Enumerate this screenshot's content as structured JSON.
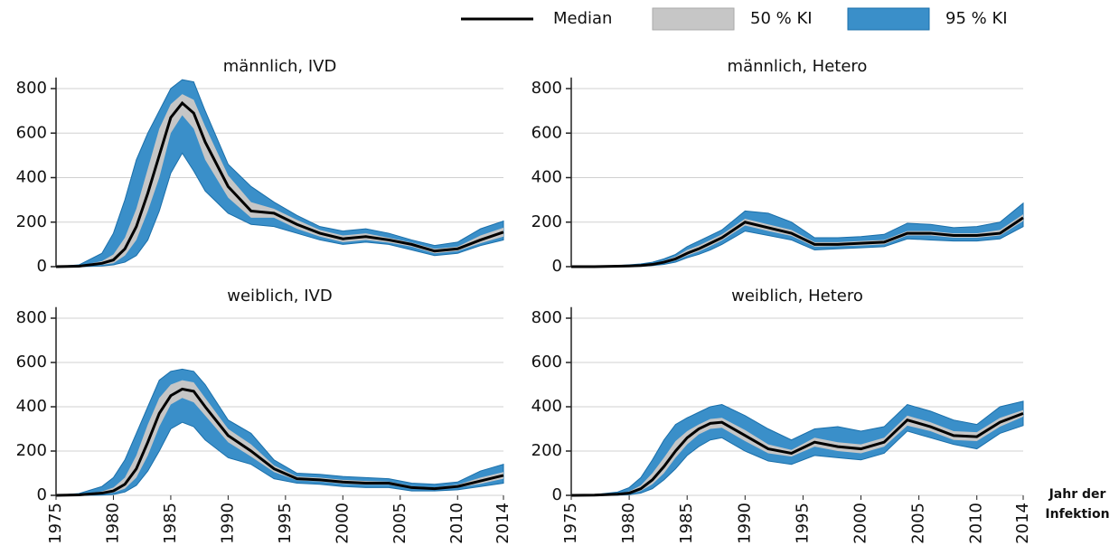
{
  "legend": [
    {
      "name": "Median",
      "color": "#000000"
    },
    {
      "name": "50 % KI",
      "color": "#c6c6c6"
    },
    {
      "name": "95 % KI",
      "color": "#3a8fc9"
    }
  ],
  "x_label": "Jahr der Infektion",
  "chart_data": [
    {
      "type": "band-line",
      "title": "männlich, IVD",
      "x": [
        1975,
        1977,
        1979,
        1980,
        1981,
        1982,
        1983,
        1984,
        1985,
        1986,
        1987,
        1988,
        1990,
        1992,
        1994,
        1996,
        1998,
        2000,
        2002,
        2004,
        2006,
        2008,
        2010,
        2012,
        2014
      ],
      "xlim": [
        1975,
        2014
      ],
      "ylim": [
        0,
        850
      ],
      "yticks": [
        0,
        200,
        400,
        600,
        800
      ],
      "series": [
        {
          "color": "#3a8fc9",
          "low": [
            0,
            0,
            3,
            8,
            20,
            50,
            120,
            250,
            420,
            510,
            430,
            340,
            240,
            190,
            180,
            150,
            120,
            100,
            110,
            100,
            75,
            50,
            60,
            95,
            120
          ],
          "high": [
            0,
            8,
            60,
            150,
            300,
            480,
            600,
            700,
            800,
            840,
            830,
            700,
            460,
            360,
            290,
            230,
            180,
            160,
            170,
            150,
            120,
            95,
            110,
            170,
            205
          ]
        },
        {
          "color": "#c6c6c6",
          "low": [
            0,
            1,
            8,
            15,
            50,
            120,
            250,
            400,
            600,
            680,
            620,
            480,
            310,
            220,
            220,
            170,
            135,
            110,
            120,
            108,
            90,
            60,
            70,
            105,
            135
          ],
          "high": [
            0,
            4,
            25,
            55,
            130,
            260,
            440,
            620,
            730,
            775,
            750,
            630,
            410,
            290,
            260,
            210,
            165,
            140,
            150,
            130,
            108,
            80,
            90,
            140,
            175
          ]
        },
        {
          "color": "#000000",
          "values": [
            0,
            2,
            15,
            30,
            80,
            180,
            330,
            500,
            670,
            735,
            690,
            560,
            360,
            250,
            240,
            190,
            150,
            125,
            135,
            120,
            100,
            70,
            80,
            120,
            155
          ]
        }
      ]
    },
    {
      "type": "band-line",
      "title": "männlich, Hetero",
      "x": [
        1975,
        1977,
        1979,
        1980,
        1981,
        1982,
        1983,
        1984,
        1985,
        1986,
        1987,
        1988,
        1990,
        1992,
        1994,
        1996,
        1998,
        2000,
        2002,
        2004,
        2006,
        2008,
        2010,
        2012,
        2014
      ],
      "xlim": [
        1975,
        2014
      ],
      "ylim": [
        0,
        850
      ],
      "yticks": [
        0,
        200,
        400,
        600,
        800
      ],
      "series": [
        {
          "color": "#3a8fc9",
          "low": [
            0,
            0,
            0,
            1,
            2,
            5,
            10,
            20,
            40,
            55,
            75,
            100,
            160,
            140,
            120,
            75,
            80,
            85,
            90,
            125,
            120,
            115,
            115,
            125,
            180
          ],
          "high": [
            0,
            1,
            5,
            8,
            12,
            20,
            35,
            55,
            90,
            115,
            140,
            165,
            250,
            240,
            200,
            130,
            130,
            135,
            145,
            195,
            190,
            175,
            180,
            200,
            285
          ]
        },
        {
          "color": "#c6c6c6",
          "low": [
            0,
            0,
            1,
            2,
            3,
            7,
            15,
            28,
            50,
            68,
            92,
            118,
            185,
            160,
            138,
            90,
            92,
            95,
            100,
            140,
            140,
            130,
            130,
            140,
            205
          ],
          "high": [
            0,
            0,
            3,
            5,
            8,
            14,
            27,
            45,
            75,
            95,
            120,
            145,
            215,
            190,
            165,
            110,
            110,
            115,
            120,
            160,
            160,
            150,
            150,
            165,
            235
          ]
        },
        {
          "color": "#000000",
          "values": [
            0,
            0,
            2,
            3,
            5,
            10,
            20,
            35,
            60,
            80,
            105,
            130,
            200,
            175,
            150,
            100,
            100,
            105,
            110,
            150,
            150,
            140,
            140,
            150,
            220
          ]
        }
      ]
    },
    {
      "type": "band-line",
      "title": "weiblich, IVD",
      "x": [
        1975,
        1977,
        1979,
        1980,
        1981,
        1982,
        1983,
        1984,
        1985,
        1986,
        1987,
        1988,
        1990,
        1992,
        1994,
        1996,
        1998,
        2000,
        2002,
        2004,
        2006,
        2008,
        2010,
        2012,
        2014
      ],
      "xlim": [
        1975,
        2014
      ],
      "xticks": [
        1975,
        1980,
        1985,
        1990,
        1995,
        2000,
        2005,
        2010,
        2014
      ],
      "ylim": [
        0,
        850
      ],
      "yticks": [
        0,
        200,
        400,
        600,
        800
      ],
      "series": [
        {
          "color": "#3a8fc9",
          "low": [
            0,
            0,
            1,
            4,
            15,
            45,
            110,
            200,
            300,
            330,
            310,
            250,
            170,
            140,
            75,
            55,
            50,
            40,
            35,
            35,
            20,
            20,
            25,
            40,
            55
          ],
          "high": [
            0,
            8,
            40,
            80,
            160,
            280,
            400,
            520,
            560,
            570,
            560,
            500,
            340,
            280,
            160,
            100,
            95,
            85,
            80,
            75,
            55,
            50,
            60,
            110,
            140
          ]
        },
        {
          "color": "#c6c6c6",
          "low": [
            0,
            1,
            5,
            12,
            30,
            80,
            180,
            310,
            410,
            440,
            420,
            360,
            240,
            175,
            105,
            68,
            62,
            52,
            48,
            48,
            30,
            26,
            35,
            52,
            75
          ],
          "high": [
            0,
            4,
            18,
            35,
            80,
            180,
            320,
            440,
            500,
            520,
            510,
            440,
            300,
            230,
            135,
            85,
            80,
            70,
            65,
            62,
            42,
            36,
            48,
            80,
            105
          ]
        },
        {
          "color": "#000000",
          "values": [
            0,
            2,
            10,
            20,
            50,
            120,
            240,
            370,
            450,
            480,
            470,
            400,
            270,
            200,
            120,
            75,
            70,
            60,
            55,
            55,
            35,
            30,
            40,
            65,
            90
          ]
        }
      ]
    },
    {
      "type": "band-line",
      "title": "weiblich, Hetero",
      "x": [
        1975,
        1977,
        1979,
        1980,
        1981,
        1982,
        1983,
        1984,
        1985,
        1986,
        1987,
        1988,
        1990,
        1992,
        1994,
        1996,
        1998,
        2000,
        2002,
        2004,
        2006,
        2008,
        2010,
        2012,
        2014
      ],
      "xlim": [
        1975,
        2014
      ],
      "xticks": [
        1975,
        1980,
        1985,
        1990,
        1995,
        2000,
        2005,
        2010,
        2014
      ],
      "ylim": [
        0,
        850
      ],
      "yticks": [
        0,
        200,
        400,
        600,
        800
      ],
      "series": [
        {
          "color": "#3a8fc9",
          "low": [
            0,
            0,
            1,
            3,
            10,
            30,
            70,
            120,
            180,
            220,
            250,
            260,
            200,
            155,
            140,
            180,
            170,
            160,
            190,
            290,
            260,
            230,
            210,
            280,
            315
          ],
          "high": [
            0,
            3,
            15,
            35,
            80,
            160,
            250,
            320,
            350,
            375,
            400,
            410,
            360,
            300,
            250,
            300,
            310,
            290,
            310,
            410,
            380,
            340,
            320,
            400,
            425
          ]
        },
        {
          "color": "#c6c6c6",
          "low": [
            0,
            0,
            3,
            6,
            20,
            50,
            100,
            170,
            230,
            275,
            300,
            305,
            245,
            190,
            175,
            220,
            200,
            190,
            220,
            315,
            290,
            250,
            245,
            310,
            355
          ],
          "high": [
            0,
            2,
            8,
            18,
            45,
            100,
            170,
            245,
            290,
            320,
            345,
            350,
            295,
            230,
            205,
            260,
            240,
            230,
            260,
            360,
            330,
            290,
            285,
            350,
            385
          ]
        },
        {
          "color": "#000000",
          "values": [
            0,
            1,
            5,
            10,
            30,
            70,
            130,
            200,
            260,
            300,
            325,
            330,
            270,
            210,
            190,
            240,
            220,
            210,
            240,
            340,
            310,
            270,
            265,
            330,
            370
          ]
        }
      ]
    }
  ]
}
